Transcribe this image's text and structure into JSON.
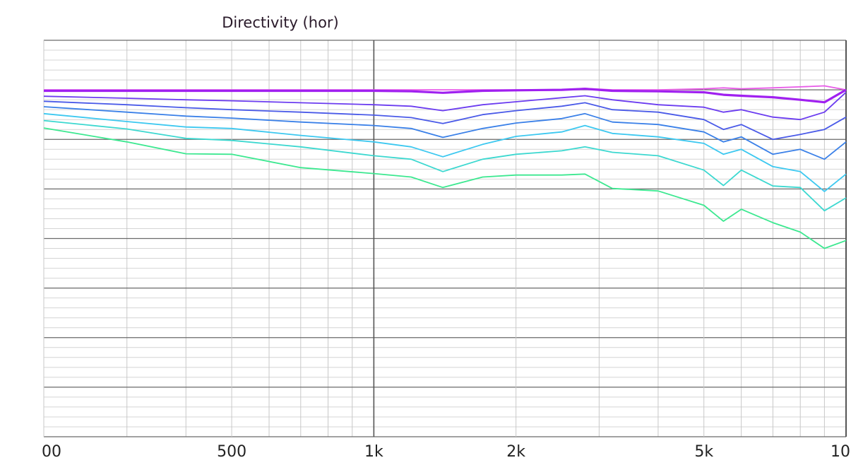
{
  "chart_data": {
    "type": "line",
    "title": "Directivity (hor)",
    "log_x": true,
    "x": [
      200,
      300,
      400,
      500,
      700,
      1000,
      1200,
      1400,
      1700,
      2000,
      2500,
      2800,
      3200,
      4000,
      5000,
      5500,
      6000,
      7000,
      8000,
      9000,
      10000
    ],
    "xlim": [
      200,
      10000
    ],
    "xticks": [
      {
        "value": 200,
        "label": "00"
      },
      500,
      {
        "value": 1000,
        "label": "1k"
      },
      {
        "value": 2000,
        "label": "2k"
      },
      {
        "value": 5000,
        "label": "5k"
      },
      {
        "value": 10000,
        "label": "10"
      }
    ],
    "x_minor_ticks": [
      300,
      400,
      600,
      700,
      800,
      900,
      3000,
      4000,
      6000,
      7000,
      8000,
      9000
    ],
    "ylim": [
      -70,
      10
    ],
    "yticks": [
      -70,
      -60,
      -50,
      -40,
      -30,
      -20,
      -10,
      0,
      10
    ],
    "y_minor_ticks": [
      -68,
      -66,
      -64,
      -62,
      -58,
      -56,
      -54,
      -52,
      -48,
      -46,
      -44,
      -42,
      -38,
      -36,
      -34,
      -32,
      -28,
      -26,
      -24,
      -22,
      -18,
      -16,
      -14,
      -12,
      -8,
      -6,
      -4,
      -2,
      2,
      4,
      6,
      8
    ],
    "grid": true,
    "series": [
      {
        "color": "#e85ae8",
        "values": [
          0,
          0,
          0,
          0,
          0,
          0,
          0,
          0,
          0,
          0,
          0,
          0.3,
          0,
          0,
          0.2,
          0.4,
          0.2,
          0.4,
          0.6,
          0.8,
          0
        ]
      },
      {
        "color": "#a020f0",
        "values": [
          -0.2,
          -0.2,
          -0.2,
          -0.2,
          -0.2,
          -0.2,
          -0.3,
          -0.6,
          -0.2,
          -0.1,
          0,
          0.2,
          -0.2,
          -0.3,
          -0.5,
          -1,
          -1.2,
          -1.5,
          -2,
          -2.5,
          0
        ]
      },
      {
        "color": "#6b3cf0",
        "values": [
          -1.3,
          -1.7,
          -2,
          -2.2,
          -2.6,
          -3,
          -3.3,
          -4.2,
          -3,
          -2.4,
          -1.6,
          -1.2,
          -2,
          -3,
          -3.5,
          -4.5,
          -4,
          -5.5,
          -6,
          -4.5,
          -0.5
        ]
      },
      {
        "color": "#4a5ae8",
        "values": [
          -2.3,
          -3,
          -3.6,
          -4,
          -4.5,
          -5.1,
          -5.6,
          -6.8,
          -5,
          -4.2,
          -3.3,
          -2.6,
          -4,
          -4.5,
          -6,
          -8,
          -7,
          -10,
          -9,
          -8,
          -5.5
        ]
      },
      {
        "color": "#3a80e8",
        "values": [
          -3.4,
          -4.5,
          -5.3,
          -5.7,
          -6.5,
          -7.2,
          -7.8,
          -9.6,
          -7.8,
          -6.7,
          -5.8,
          -4.8,
          -6.5,
          -7,
          -8.5,
          -10.5,
          -9.5,
          -13,
          -12,
          -14,
          -10.5
        ]
      },
      {
        "color": "#3cc8f0",
        "values": [
          -4.8,
          -6.4,
          -7.5,
          -7.8,
          -9.2,
          -10.5,
          -11.5,
          -13.5,
          -11,
          -9.4,
          -8.5,
          -7.2,
          -8.8,
          -9.5,
          -10.8,
          -13,
          -12,
          -15.5,
          -16.5,
          -20.5,
          -17
        ]
      },
      {
        "color": "#3cd8d0",
        "values": [
          -6.2,
          -7.9,
          -9.8,
          -10.2,
          -11.5,
          -13.3,
          -14,
          -16.5,
          -14,
          -13,
          -12.3,
          -11.5,
          -12.6,
          -13.3,
          -16.2,
          -19.3,
          -16.2,
          -19.4,
          -19.7,
          -24.4,
          -21.8
        ]
      },
      {
        "color": "#3ce890",
        "values": [
          -7.7,
          -10.5,
          -12.9,
          -13,
          -15.7,
          -16.9,
          -17.6,
          -19.7,
          -17.6,
          -17.2,
          -17.2,
          -17,
          -19.9,
          -20.4,
          -23.3,
          -26.5,
          -24.1,
          -26.8,
          -28.7,
          -32,
          -30.4
        ]
      }
    ]
  }
}
